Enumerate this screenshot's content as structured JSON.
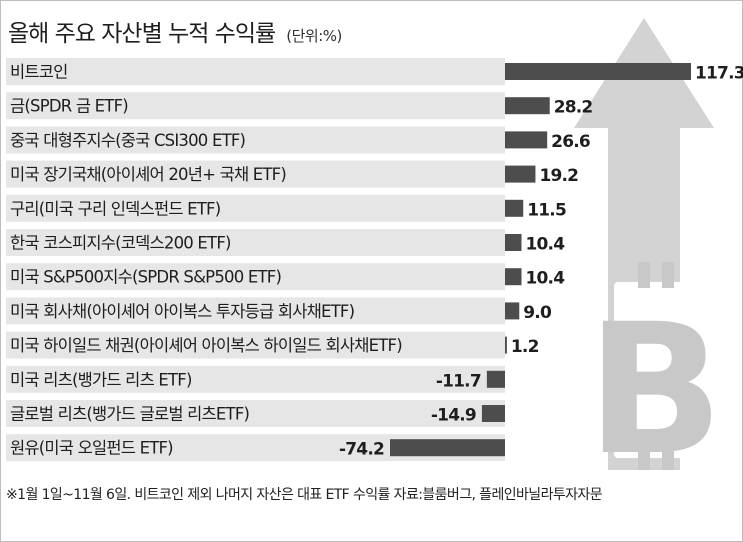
{
  "header": {
    "title": "올해 주요 자산별 누적 수익률",
    "unit": "(단위:%)"
  },
  "footnote": "※1월 1일~11월 6일. 비트코인 제외 나머지 자산은 대표 ETF 수익률   자료:블룸버그, 플레인바닐라투자자문",
  "colors": {
    "row_bg": "#e6e6e6",
    "bar": "#4d4d4d",
    "arrow_bg": "#d3d3d3",
    "bitcoin_mark": "#c8c8c8",
    "text": "#1e1e1e"
  },
  "icons": {
    "background_arrow": "up-arrow-icon",
    "background_logo": "bitcoin-icon"
  },
  "chart_data": {
    "type": "bar",
    "orientation": "horizontal",
    "categories": [
      "비트코인",
      "금(SPDR 금 ETF)",
      "중국 대형주지수(중국 CSI300 ETF)",
      "미국 장기국채(아이셰어 20년+ 국채 ETF)",
      "구리(미국 구리 인덱스펀드 ETF)",
      "한국 코스피지수(코덱스200 ETF)",
      "미국 S&P500지수(SPDR S&P500 ETF)",
      "미국 회사채(아이셰어 아이복스 투자등급 회사채ETF)",
      "미국 하이일드 채권(아이셰어 아이복스 하이일드 회사채ETF)",
      "미국 리츠(뱅가드 리츠 ETF)",
      "글로벌 리츠(뱅가드 글로벌 리츠ETF)",
      "원유(미국 오일펀드 ETF)"
    ],
    "values": [
      117.3,
      28.2,
      26.6,
      19.2,
      11.5,
      10.4,
      10.4,
      9.0,
      1.2,
      -11.7,
      -14.9,
      -74.2
    ],
    "value_labels": [
      "117.3",
      "28.2",
      "26.6",
      "19.2",
      "11.5",
      "10.4",
      "10.4",
      "9.0",
      "1.2",
      "-11.7",
      "-14.9",
      "-74.2"
    ],
    "title": "올해 주요 자산별 누적 수익률",
    "unit": "(단위:%)",
    "xlabel": "",
    "ylabel": "",
    "grid": false,
    "legend": "none"
  }
}
